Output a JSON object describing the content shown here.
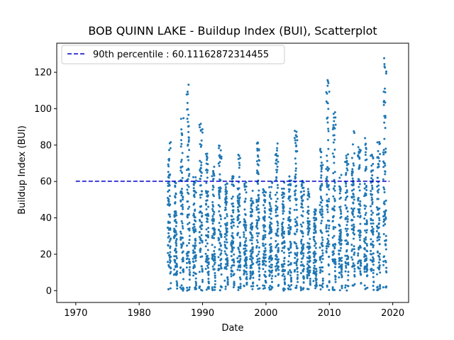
{
  "chart_data": {
    "type": "scatter",
    "title": "BOB QUINN LAKE - Buildup Index (BUI), Scatterplot",
    "xlabel": "Date",
    "ylabel": "Buildup Index (BUI)",
    "xlim": [
      1967,
      2022.5
    ],
    "ylim": [
      -6.5,
      136
    ],
    "xticks": [
      1970,
      1980,
      1990,
      2000,
      2010,
      2020
    ],
    "yticks": [
      0,
      20,
      40,
      60,
      80,
      100,
      120
    ],
    "grid": false,
    "legend_position": "top-left",
    "colors": {
      "points": "#1f77b4",
      "reference_line": "#0000cc"
    },
    "reference_line": {
      "label": "90th percentile : 60.11162872314455",
      "value": 60.11162872314455,
      "x_range": [
        1970,
        2019.5
      ],
      "style": "dashed"
    },
    "season_peaks": [
      [
        1984.5,
        86
      ],
      [
        1985.5,
        60
      ],
      [
        1986.5,
        96
      ],
      [
        1987.5,
        115
      ],
      [
        1988.5,
        63
      ],
      [
        1989.5,
        92
      ],
      [
        1990.5,
        76
      ],
      [
        1991.5,
        72
      ],
      [
        1992.5,
        80
      ],
      [
        1993.5,
        60
      ],
      [
        1994.5,
        65
      ],
      [
        1995.5,
        79
      ],
      [
        1996.5,
        60
      ],
      [
        1997.5,
        55
      ],
      [
        1998.5,
        83
      ],
      [
        1999.5,
        57
      ],
      [
        2000.5,
        60
      ],
      [
        2001.5,
        82
      ],
      [
        2002.5,
        61
      ],
      [
        2003.5,
        65
      ],
      [
        2004.5,
        88
      ],
      [
        2005.5,
        61
      ],
      [
        2006.5,
        58
      ],
      [
        2007.5,
        45
      ],
      [
        2008.5,
        79
      ],
      [
        2009.5,
        122
      ],
      [
        2010.5,
        103
      ],
      [
        2011.5,
        64
      ],
      [
        2012.5,
        77
      ],
      [
        2013.5,
        88
      ],
      [
        2014.5,
        81
      ],
      [
        2015.5,
        84
      ],
      [
        2016.5,
        76
      ],
      [
        2017.5,
        82
      ],
      [
        2018.5,
        129
      ]
    ],
    "points_per_season": 80,
    "season_span_years": 0.5
  }
}
